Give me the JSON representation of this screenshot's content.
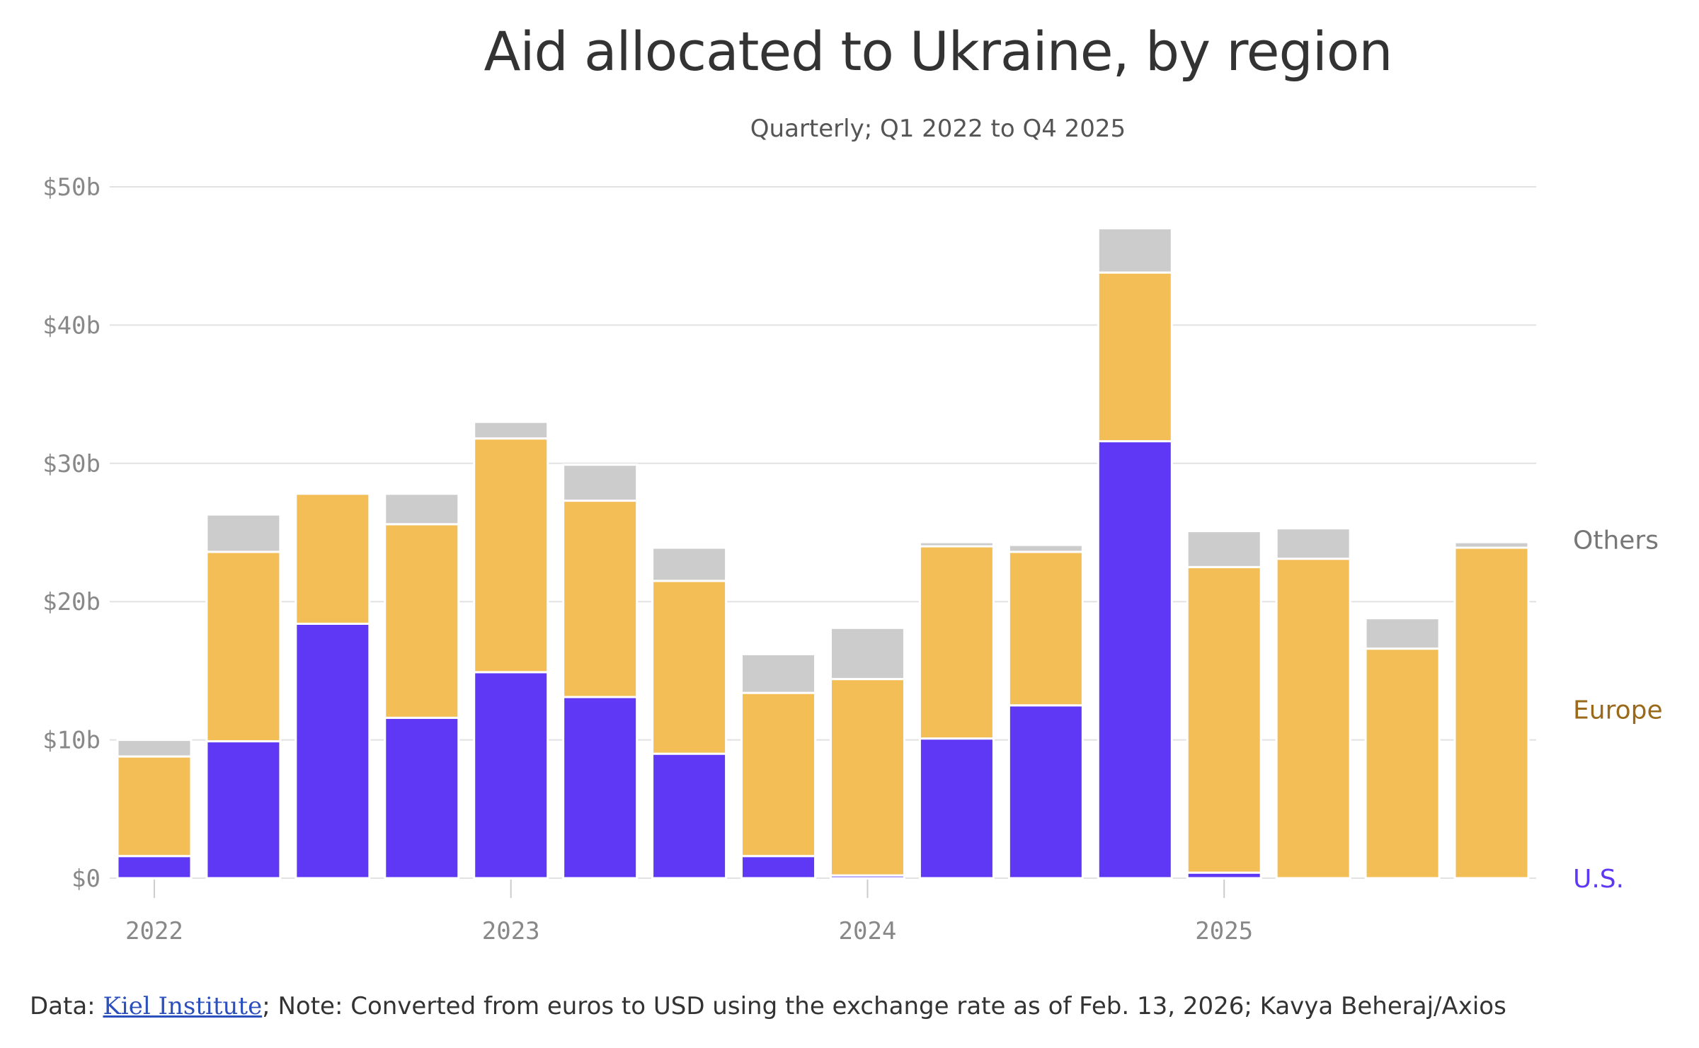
{
  "title": "Aid allocated to Ukraine, by region",
  "subtitle": "Quarterly; Q1 2022 to Q4 2025",
  "footer": {
    "prefix": "Data: ",
    "link": "Kiel Institute",
    "suffix": "; Note: Converted from euros to USD using the exchange rate as of Feb. 13, 2026; Kavya Beheraj/Axios"
  },
  "chart_data": {
    "type": "bar",
    "stacked": true,
    "categories": [
      "Q1 2022",
      "Q2 2022",
      "Q3 2022",
      "Q4 2022",
      "Q1 2023",
      "Q2 2023",
      "Q3 2023",
      "Q4 2023",
      "Q1 2024",
      "Q2 2024",
      "Q3 2024",
      "Q4 2024",
      "Q1 2025",
      "Q2 2025",
      "Q3 2025",
      "Q4 2025"
    ],
    "x_ticks": [
      "2022",
      "2023",
      "2024",
      "2025"
    ],
    "y_ticks": [
      "$0",
      "$10b",
      "$20b",
      "$30b",
      "$40b",
      "$50b"
    ],
    "ylim": [
      0,
      50
    ],
    "grid": true,
    "legend_placement": "right, inline at series levels",
    "series": [
      {
        "name": "U.S.",
        "color": "#5e38f5",
        "values": [
          1.6,
          9.9,
          18.4,
          11.6,
          14.9,
          13.1,
          9.0,
          1.6,
          0.2,
          10.1,
          12.5,
          31.6,
          0.4,
          0.0,
          0.0,
          0.0
        ]
      },
      {
        "name": "Europe",
        "color": "#f4be57",
        "values": [
          7.2,
          13.7,
          9.4,
          14.0,
          16.9,
          14.2,
          12.5,
          11.8,
          14.2,
          13.9,
          11.1,
          12.2,
          22.1,
          23.1,
          16.6,
          23.9
        ]
      },
      {
        "name": "Others",
        "color": "#cccccc",
        "values": [
          1.2,
          2.7,
          0.0,
          2.2,
          1.2,
          2.6,
          2.4,
          2.8,
          3.7,
          0.3,
          0.5,
          3.2,
          2.6,
          2.2,
          2.2,
          0.4
        ]
      }
    ],
    "legend_colors": {
      "U.S.": "#5e38f5",
      "Europe": "#9a6a1a",
      "Others": "#777777"
    }
  }
}
